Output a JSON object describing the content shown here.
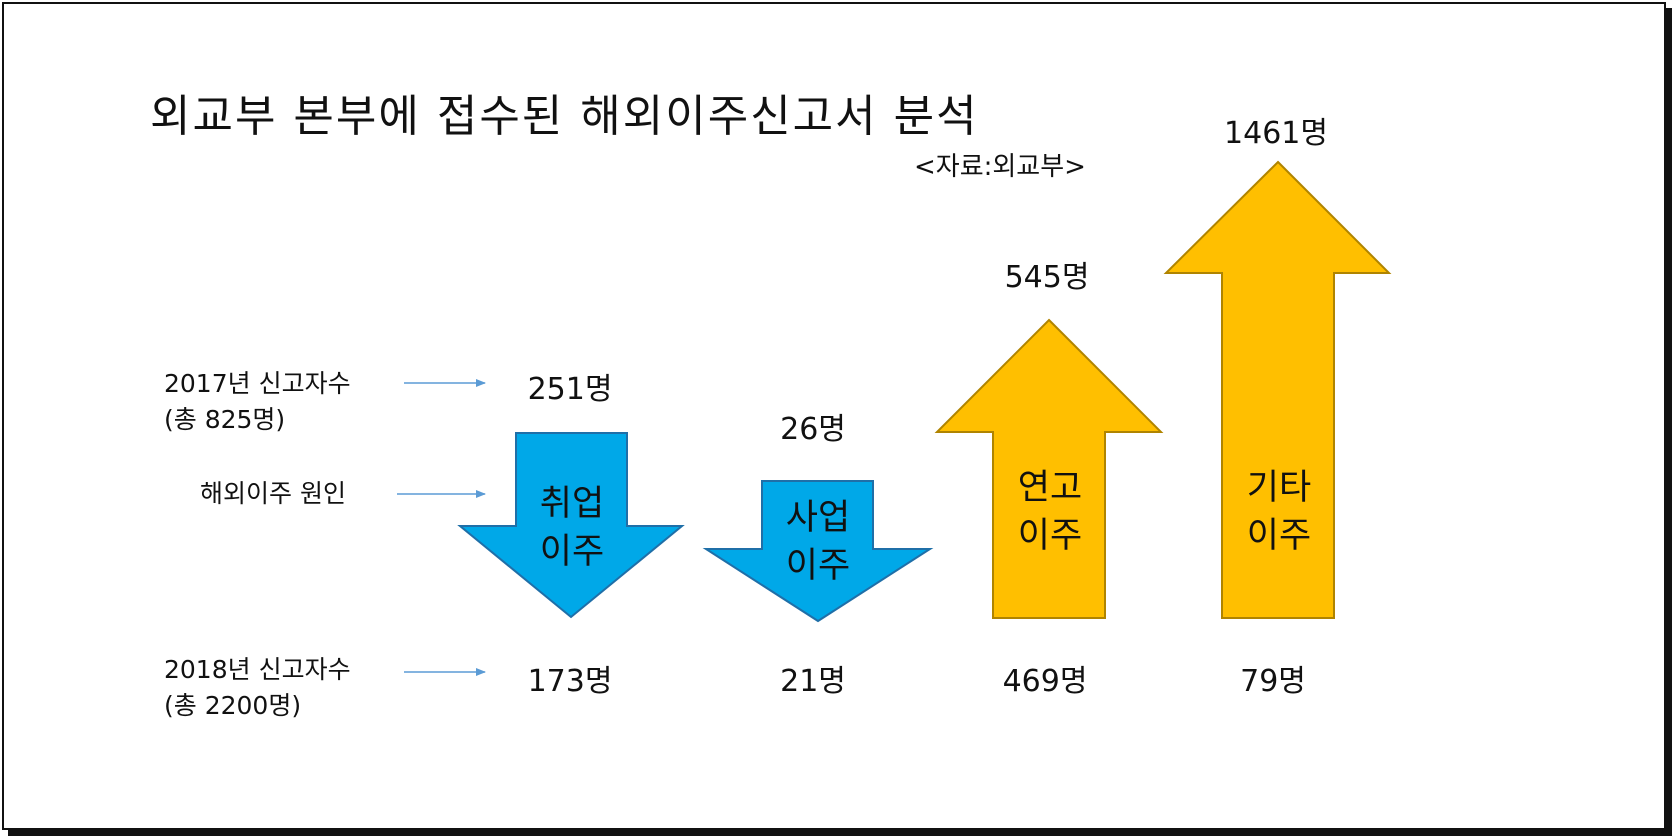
{
  "title": "외교부 본부에 접수된 해외이주신고서 분석",
  "source": "<자료:외교부>",
  "labels": {
    "y2017_line1": "2017년 신고자수",
    "y2017_line2": "(총 825명)",
    "cause": "해외이주 원인",
    "y2018_line1": "2018년 신고자수",
    "y2018_line2": "(총 2200명)"
  },
  "categories": [
    {
      "line1": "취업",
      "line2": "이주",
      "v2017": "251명",
      "v2018": "173명",
      "direction": "down",
      "color": "#00a8e8"
    },
    {
      "line1": "사업",
      "line2": "이주",
      "v2017": "26명",
      "v2018": "21명",
      "direction": "down",
      "color": "#00a8e8"
    },
    {
      "line1": "연고",
      "line2": "이주",
      "v2017": "469명",
      "v2018": "545명",
      "direction": "up",
      "color": "#ffbf00"
    },
    {
      "line1": "기타",
      "line2": "이주",
      "v2017": "79명",
      "v2018": "1461명",
      "direction": "up",
      "color": "#ffbf00"
    }
  ]
}
